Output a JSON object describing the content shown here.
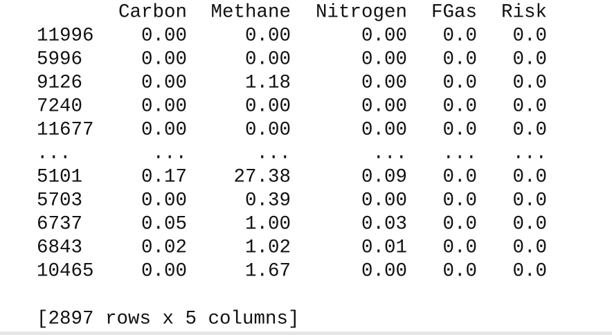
{
  "table": {
    "columns": [
      "Carbon",
      "Methane",
      "Nitrogen",
      "FGas",
      "Risk"
    ],
    "rows": [
      {
        "index": "11996",
        "values": [
          "0.00",
          "0.00",
          "0.00",
          "0.0",
          "0.0"
        ]
      },
      {
        "index": "5996",
        "values": [
          "0.00",
          "0.00",
          "0.00",
          "0.0",
          "0.0"
        ]
      },
      {
        "index": "9126",
        "values": [
          "0.00",
          "1.18",
          "0.00",
          "0.0",
          "0.0"
        ]
      },
      {
        "index": "7240",
        "values": [
          "0.00",
          "0.00",
          "0.00",
          "0.0",
          "0.0"
        ]
      },
      {
        "index": "11677",
        "values": [
          "0.00",
          "0.00",
          "0.00",
          "0.0",
          "0.0"
        ]
      },
      {
        "index": "...",
        "values": [
          "...",
          "...",
          "...",
          "...",
          "..."
        ]
      },
      {
        "index": "5101",
        "values": [
          "0.17",
          "27.38",
          "0.09",
          "0.0",
          "0.0"
        ]
      },
      {
        "index": "5703",
        "values": [
          "0.00",
          "0.39",
          "0.00",
          "0.0",
          "0.0"
        ]
      },
      {
        "index": "6737",
        "values": [
          "0.05",
          "1.00",
          "0.03",
          "0.0",
          "0.0"
        ]
      },
      {
        "index": "6843",
        "values": [
          "0.02",
          "1.02",
          "0.01",
          "0.0",
          "0.0"
        ]
      },
      {
        "index": "10465",
        "values": [
          "0.00",
          "1.67",
          "0.00",
          "0.0",
          "0.0"
        ]
      }
    ],
    "footer": "[2897 rows x 5 columns]"
  }
}
